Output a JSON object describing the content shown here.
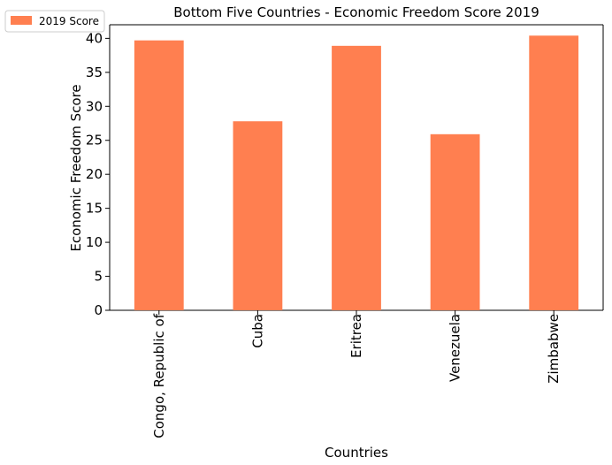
{
  "chart_data": {
    "type": "bar",
    "title": "Bottom Five Countries - Economic Freedom Score 2019",
    "xlabel": "Countries",
    "ylabel": "Economic Freedom Score",
    "categories": [
      "Congo, Republic of",
      "Cuba",
      "Eritrea",
      "Venezuela",
      "Zimbabwe"
    ],
    "series": [
      {
        "name": "2019 Score",
        "values": [
          39.7,
          27.8,
          38.9,
          25.9,
          40.4
        ]
      }
    ],
    "ylim": [
      0,
      42
    ],
    "yticks": [
      0,
      5,
      10,
      15,
      20,
      25,
      30,
      35,
      40
    ],
    "grid": false,
    "legend_position": "top-left outside",
    "bar_color": "#ff7f50"
  }
}
